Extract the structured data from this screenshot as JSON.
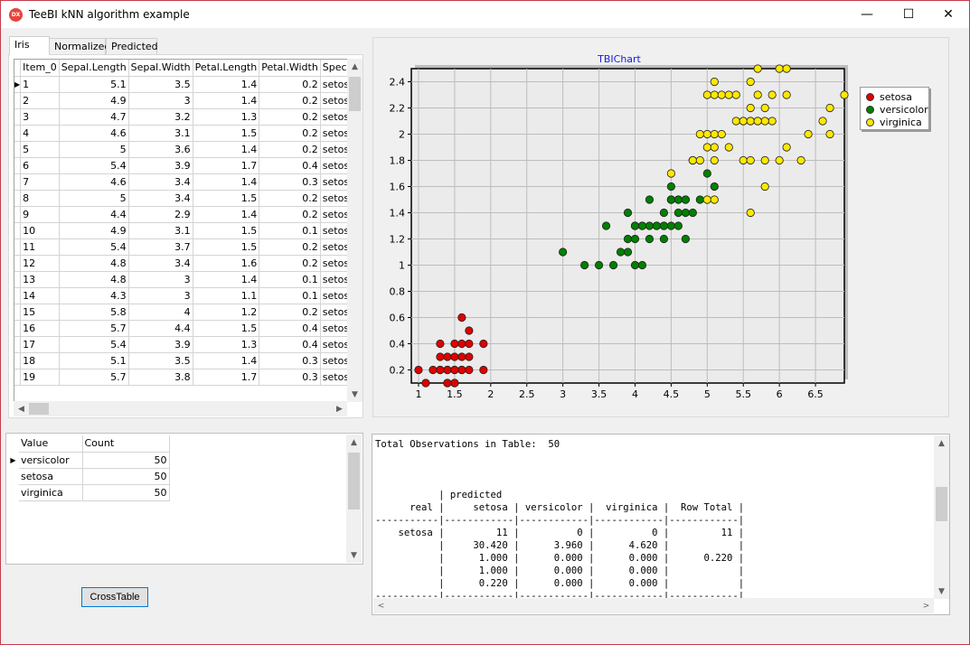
{
  "window": {
    "title": "TeeBI kNN algorithm example",
    "app_icon_text": "DX",
    "minimize": "—",
    "maximize": "☐",
    "close": "✕"
  },
  "tabs": [
    {
      "label": "Iris"
    },
    {
      "label": "Normalized"
    },
    {
      "label": "Predicted"
    }
  ],
  "iris_grid": {
    "columns": [
      "Item_0",
      "Sepal.Length",
      "Sepal.Width",
      "Petal.Length",
      "Petal.Width",
      "Species"
    ],
    "rows": [
      [
        "1",
        "5.1",
        "3.5",
        "1.4",
        "0.2",
        "setosa"
      ],
      [
        "2",
        "4.9",
        "3",
        "1.4",
        "0.2",
        "setosa"
      ],
      [
        "3",
        "4.7",
        "3.2",
        "1.3",
        "0.2",
        "setosa"
      ],
      [
        "4",
        "4.6",
        "3.1",
        "1.5",
        "0.2",
        "setosa"
      ],
      [
        "5",
        "5",
        "3.6",
        "1.4",
        "0.2",
        "setosa"
      ],
      [
        "6",
        "5.4",
        "3.9",
        "1.7",
        "0.4",
        "setosa"
      ],
      [
        "7",
        "4.6",
        "3.4",
        "1.4",
        "0.3",
        "setosa"
      ],
      [
        "8",
        "5",
        "3.4",
        "1.5",
        "0.2",
        "setosa"
      ],
      [
        "9",
        "4.4",
        "2.9",
        "1.4",
        "0.2",
        "setosa"
      ],
      [
        "10",
        "4.9",
        "3.1",
        "1.5",
        "0.1",
        "setosa"
      ],
      [
        "11",
        "5.4",
        "3.7",
        "1.5",
        "0.2",
        "setosa"
      ],
      [
        "12",
        "4.8",
        "3.4",
        "1.6",
        "0.2",
        "setosa"
      ],
      [
        "13",
        "4.8",
        "3",
        "1.4",
        "0.1",
        "setosa"
      ],
      [
        "14",
        "4.3",
        "3",
        "1.1",
        "0.1",
        "setosa"
      ],
      [
        "15",
        "5.8",
        "4",
        "1.2",
        "0.2",
        "setosa"
      ],
      [
        "16",
        "5.7",
        "4.4",
        "1.5",
        "0.4",
        "setosa"
      ],
      [
        "17",
        "5.4",
        "3.9",
        "1.3",
        "0.4",
        "setosa"
      ],
      [
        "18",
        "5.1",
        "3.5",
        "1.4",
        "0.3",
        "setosa"
      ],
      [
        "19",
        "5.7",
        "3.8",
        "1.7",
        "0.3",
        "setosa"
      ]
    ]
  },
  "count_grid": {
    "columns": [
      "Value",
      "Count"
    ],
    "rows": [
      [
        "versicolor",
        "50"
      ],
      [
        "setosa",
        "50"
      ],
      [
        "virginica",
        "50"
      ]
    ]
  },
  "crosstable_button": "CrossTable",
  "output_text": "Total Observations in Table:  50\n\n\n\n           | predicted\n      real |     setosa | versicolor |  virginica |  Row Total |\n-----------|------------|------------|------------|------------|\n    setosa |         11 |          0 |          0 |         11 |\n           |     30.420 |      3.960 |      4.620 |            |\n           |      1.000 |      0.000 |      0.000 |      0.220 |\n           |      1.000 |      0.000 |      0.000 |            |\n           |      0.220 |      0.000 |      0.000 |            |\n-----------|------------|------------|------------|------------|",
  "chart_data": {
    "type": "scatter",
    "title": "TBIChart",
    "xlim": [
      0.9,
      6.9
    ],
    "ylim": [
      0.1,
      2.5
    ],
    "xticks": [
      "1",
      "1.5",
      "2",
      "2.5",
      "3",
      "3.5",
      "4",
      "4.5",
      "5",
      "5.5",
      "6",
      "6.5"
    ],
    "yticks": [
      "0.2",
      "0.4",
      "0.6",
      "0.8",
      "1",
      "1.2",
      "1.4",
      "1.6",
      "1.8",
      "2",
      "2.2",
      "2.4"
    ],
    "grid": true,
    "legend_position": "right",
    "series": [
      {
        "name": "setosa",
        "color": "#e00000",
        "points": [
          [
            1,
            0.2
          ],
          [
            1.1,
            0.1
          ],
          [
            1.2,
            0.2
          ],
          [
            1.3,
            0.2
          ],
          [
            1.3,
            0.3
          ],
          [
            1.3,
            0.4
          ],
          [
            1.4,
            0.1
          ],
          [
            1.4,
            0.2
          ],
          [
            1.4,
            0.3
          ],
          [
            1.4,
            0.2
          ],
          [
            1.5,
            0.1
          ],
          [
            1.5,
            0.2
          ],
          [
            1.5,
            0.4
          ],
          [
            1.5,
            0.3
          ],
          [
            1.6,
            0.2
          ],
          [
            1.6,
            0.4
          ],
          [
            1.6,
            0.6
          ],
          [
            1.7,
            0.2
          ],
          [
            1.7,
            0.3
          ],
          [
            1.7,
            0.4
          ],
          [
            1.7,
            0.5
          ],
          [
            1.9,
            0.2
          ],
          [
            1.9,
            0.4
          ],
          [
            1.5,
            0.1
          ],
          [
            1.4,
            0.1
          ],
          [
            1.6,
            0.2
          ],
          [
            1.5,
            0.2
          ],
          [
            1.3,
            0.2
          ],
          [
            1.6,
            0.3
          ]
        ]
      },
      {
        "name": "versicolor",
        "color": "#008000",
        "points": [
          [
            3,
            1.1
          ],
          [
            3.3,
            1
          ],
          [
            3.5,
            1
          ],
          [
            3.6,
            1.3
          ],
          [
            3.7,
            1
          ],
          [
            3.8,
            1.1
          ],
          [
            3.9,
            1.1
          ],
          [
            3.9,
            1.2
          ],
          [
            3.9,
            1.4
          ],
          [
            4,
            1
          ],
          [
            4,
            1.2
          ],
          [
            4,
            1.3
          ],
          [
            4.1,
            1
          ],
          [
            4.1,
            1.3
          ],
          [
            4.2,
            1.2
          ],
          [
            4.2,
            1.3
          ],
          [
            4.2,
            1.5
          ],
          [
            4.3,
            1.3
          ],
          [
            4.4,
            1.2
          ],
          [
            4.4,
            1.3
          ],
          [
            4.4,
            1.4
          ],
          [
            4.5,
            1.3
          ],
          [
            4.5,
            1.5
          ],
          [
            4.5,
            1.6
          ],
          [
            4.6,
            1.3
          ],
          [
            4.6,
            1.4
          ],
          [
            4.6,
            1.5
          ],
          [
            4.7,
            1.2
          ],
          [
            4.7,
            1.4
          ],
          [
            4.7,
            1.5
          ],
          [
            4.8,
            1.4
          ],
          [
            4.8,
            1.8
          ],
          [
            4.9,
            1.5
          ],
          [
            5,
            1.7
          ],
          [
            5.1,
            1.6
          ],
          [
            4.5,
            1.5
          ],
          [
            4.6,
            1.5
          ],
          [
            4.8,
            1.8
          ],
          [
            4.5,
            1.5
          ],
          [
            4.7,
            1.5
          ],
          [
            4.1,
            1.3
          ],
          [
            4.3,
            1.3
          ],
          [
            4,
            1.3
          ],
          [
            4.4,
            1.3
          ]
        ]
      },
      {
        "name": "virginica",
        "color": "#ffe800",
        "points": [
          [
            4.5,
            1.7
          ],
          [
            4.8,
            1.8
          ],
          [
            4.9,
            1.8
          ],
          [
            4.9,
            2
          ],
          [
            5,
            1.5
          ],
          [
            5,
            1.9
          ],
          [
            5,
            2
          ],
          [
            5,
            2.3
          ],
          [
            5.1,
            1.5
          ],
          [
            5.1,
            1.8
          ],
          [
            5.1,
            1.9
          ],
          [
            5.1,
            2
          ],
          [
            5.1,
            2.3
          ],
          [
            5.1,
            2.4
          ],
          [
            5.2,
            2
          ],
          [
            5.2,
            2.3
          ],
          [
            5.3,
            1.9
          ],
          [
            5.3,
            2.3
          ],
          [
            5.4,
            2.1
          ],
          [
            5.4,
            2.3
          ],
          [
            5.5,
            1.8
          ],
          [
            5.5,
            2.1
          ],
          [
            5.6,
            1.4
          ],
          [
            5.6,
            1.8
          ],
          [
            5.6,
            2.1
          ],
          [
            5.6,
            2.2
          ],
          [
            5.6,
            2.4
          ],
          [
            5.7,
            2.1
          ],
          [
            5.7,
            2.3
          ],
          [
            5.7,
            2.5
          ],
          [
            5.8,
            1.6
          ],
          [
            5.8,
            1.8
          ],
          [
            5.8,
            2.2
          ],
          [
            5.9,
            2.1
          ],
          [
            5.9,
            2.3
          ],
          [
            6,
            1.8
          ],
          [
            6,
            2.5
          ],
          [
            6.1,
            1.9
          ],
          [
            6.1,
            2.3
          ],
          [
            6.1,
            2.5
          ],
          [
            6.3,
            1.8
          ],
          [
            6.4,
            2
          ],
          [
            6.6,
            2.1
          ],
          [
            6.7,
            2
          ],
          [
            6.7,
            2.2
          ],
          [
            6.9,
            2.3
          ],
          [
            5.5,
            2.1
          ],
          [
            5.6,
            2.1
          ],
          [
            5.8,
            2.1
          ],
          [
            5.7,
            2.1
          ]
        ]
      }
    ]
  }
}
